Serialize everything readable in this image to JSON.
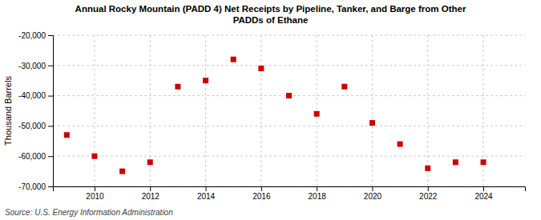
{
  "chart_data": {
    "type": "scatter",
    "title": "Annual Rocky Mountain (PADD 4) Net Receipts by Pipeline, Tanker, and Barge from Other\nPADDs of Ethane",
    "ylabel": "Thousand Barrels",
    "source": "Source: U.S. Energy Information Administration",
    "x": [
      2009,
      2010,
      2011,
      2012,
      2013,
      2014,
      2015,
      2016,
      2017,
      2018,
      2019,
      2020,
      2021,
      2022,
      2023,
      2024
    ],
    "values": [
      -53000,
      -60000,
      -65000,
      -62000,
      -37000,
      -35000,
      -28000,
      -31000,
      -40000,
      -46000,
      -37000,
      -49000,
      -56000,
      -64000,
      -62000,
      -62000
    ],
    "color": "#cc0000",
    "marker": "square",
    "xlim": [
      2008.5,
      2025.5
    ],
    "xticks": [
      2010,
      2012,
      2014,
      2016,
      2018,
      2020,
      2022,
      2024
    ],
    "ylim": [
      -70000,
      -20000
    ],
    "yticks": [
      {
        "value": -70000,
        "label": "-70,000"
      },
      {
        "value": -60000,
        "label": "-60,000"
      },
      {
        "value": -50000,
        "label": "-50,000"
      },
      {
        "value": -40000,
        "label": "-40,000"
      },
      {
        "value": -30000,
        "label": "-30,000"
      },
      {
        "value": -20000,
        "label": "-20,000"
      }
    ],
    "grid": true
  }
}
